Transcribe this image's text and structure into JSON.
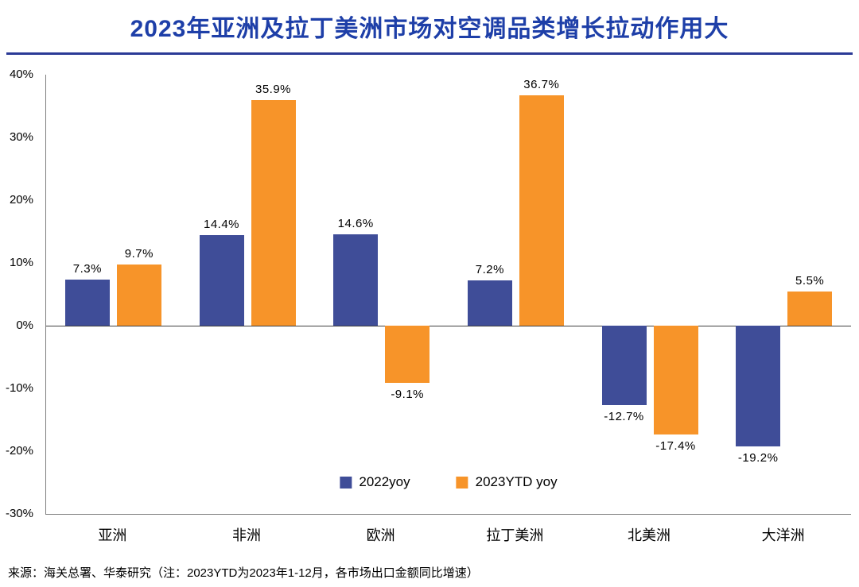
{
  "title": "2023年亚洲及拉丁美洲市场对空调品类增长拉动作用大",
  "footer": "来源：海关总署、华泰研究（注：2023YTD为2023年1-12月，各市场出口金额同比增速）",
  "colors": {
    "title": "#1e3fa8",
    "divider": "#2b3a96",
    "series_2022": "#3f4d98",
    "series_2023": "#f79429",
    "zero_line": "#404040",
    "axis": "#808080"
  },
  "chart_data": {
    "type": "bar",
    "title": "2023年亚洲及拉丁美洲市场对空调品类增长拉动作用大",
    "categories": [
      "亚洲",
      "非洲",
      "欧洲",
      "拉丁美洲",
      "北美洲",
      "大洋洲"
    ],
    "series": [
      {
        "name": "2022yoy",
        "color": "#3f4d98",
        "values": [
          7.3,
          14.4,
          14.6,
          7.2,
          -12.7,
          -19.2
        ]
      },
      {
        "name": "2023YTD yoy",
        "color": "#f79429",
        "values": [
          9.7,
          35.9,
          -9.1,
          36.7,
          -17.4,
          5.5
        ]
      }
    ],
    "data_labels": [
      [
        "7.3%",
        "14.4%",
        "14.6%",
        "7.2%",
        "-12.7%",
        "-19.2%"
      ],
      [
        "9.7%",
        "35.9%",
        "-9.1%",
        "36.7%",
        "-17.4%",
        "5.5%"
      ]
    ],
    "xlabel": "",
    "ylabel": "",
    "ylim": [
      -30,
      40
    ],
    "ytick_step": 10,
    "ytick_labels": [
      "40%",
      "30%",
      "20%",
      "10%",
      "0%",
      "-10%",
      "-20%",
      "-30%"
    ],
    "grid": false,
    "legend_position": "bottom-center-inside"
  }
}
